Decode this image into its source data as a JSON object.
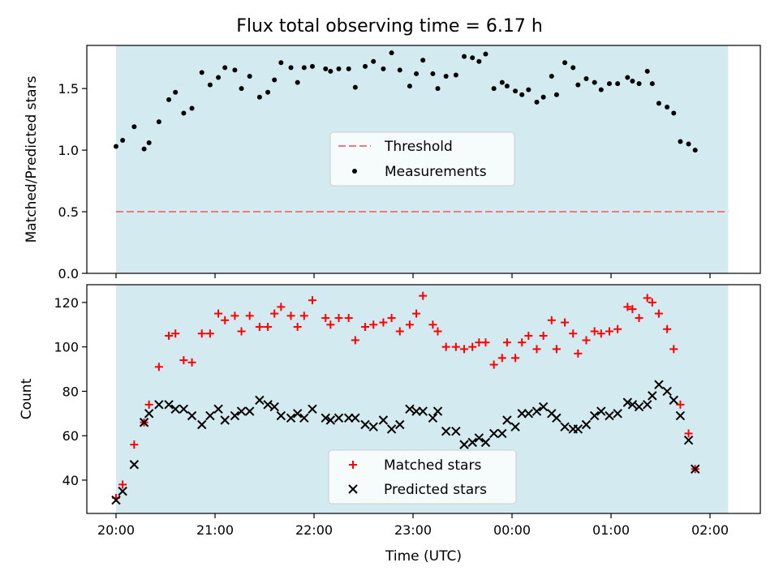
{
  "figure": {
    "title": "Flux total observing time = 6.17 h"
  },
  "chart_data": [
    {
      "type": "scatter",
      "ylabel": "Matched/Predicted stars",
      "xlabel": "",
      "ylim": [
        0,
        1.85
      ],
      "yticks": [
        0.0,
        0.5,
        1.0,
        1.5
      ],
      "ytick_labels": [
        "0.0",
        "0.5",
        "1.0",
        "1.5"
      ],
      "shaded_span": [
        "20:00",
        "02:11"
      ],
      "shade_color": "#d3eaf0",
      "threshold": {
        "name": "Threshold",
        "value": 0.5,
        "color": "#f07a7a"
      },
      "series": [
        {
          "name": "Measurements",
          "color": "#000000",
          "points": [
            [
              "20:00",
              1.03
            ],
            [
              "20:04",
              1.08
            ],
            [
              "20:11",
              1.19
            ],
            [
              "20:17",
              1.01
            ],
            [
              "20:20",
              1.06
            ],
            [
              "20:26",
              1.23
            ],
            [
              "20:32",
              1.41
            ],
            [
              "20:36",
              1.47
            ],
            [
              "20:41",
              1.3
            ],
            [
              "20:46",
              1.34
            ],
            [
              "20:52",
              1.63
            ],
            [
              "20:57",
              1.53
            ],
            [
              "21:02",
              1.59
            ],
            [
              "21:06",
              1.67
            ],
            [
              "21:12",
              1.65
            ],
            [
              "21:16",
              1.5
            ],
            [
              "21:21",
              1.6
            ],
            [
              "21:27",
              1.43
            ],
            [
              "21:32",
              1.47
            ],
            [
              "21:36",
              1.57
            ],
            [
              "21:40",
              1.71
            ],
            [
              "21:46",
              1.67
            ],
            [
              "21:50",
              1.55
            ],
            [
              "21:54",
              1.67
            ],
            [
              "21:59",
              1.68
            ],
            [
              "22:07",
              1.66
            ],
            [
              "22:10",
              1.64
            ],
            [
              "22:15",
              1.66
            ],
            [
              "22:21",
              1.66
            ],
            [
              "22:25",
              1.51
            ],
            [
              "22:31",
              1.68
            ],
            [
              "22:36",
              1.72
            ],
            [
              "22:42",
              1.66
            ],
            [
              "22:47",
              1.79
            ],
            [
              "22:52",
              1.65
            ],
            [
              "22:58",
              1.52
            ],
            [
              "23:02",
              1.62
            ],
            [
              "23:06",
              1.73
            ],
            [
              "23:12",
              1.62
            ],
            [
              "23:15",
              1.5
            ],
            [
              "23:20",
              1.6
            ],
            [
              "23:26",
              1.61
            ],
            [
              "23:31",
              1.76
            ],
            [
              "23:36",
              1.75
            ],
            [
              "23:40",
              1.72
            ],
            [
              "23:44",
              1.78
            ],
            [
              "23:49",
              1.5
            ],
            [
              "23:54",
              1.55
            ],
            [
              "23:57",
              1.52
            ],
            [
              "00:02",
              1.48
            ],
            [
              "00:06",
              1.45
            ],
            [
              "00:10",
              1.49
            ],
            [
              "00:15",
              1.39
            ],
            [
              "00:19",
              1.43
            ],
            [
              "00:24",
              1.6
            ],
            [
              "00:27",
              1.45
            ],
            [
              "00:32",
              1.71
            ],
            [
              "00:37",
              1.67
            ],
            [
              "00:40",
              1.53
            ],
            [
              "00:45",
              1.58
            ],
            [
              "00:50",
              1.55
            ],
            [
              "00:54",
              1.49
            ],
            [
              "00:59",
              1.54
            ],
            [
              "01:04",
              1.54
            ],
            [
              "01:10",
              1.59
            ],
            [
              "01:13",
              1.56
            ],
            [
              "01:17",
              1.54
            ],
            [
              "01:22",
              1.64
            ],
            [
              "01:25",
              1.54
            ],
            [
              "01:29",
              1.38
            ],
            [
              "01:34",
              1.35
            ],
            [
              "01:38",
              1.3
            ],
            [
              "01:42",
              1.07
            ],
            [
              "01:47",
              1.05
            ],
            [
              "01:51",
              1.0
            ]
          ]
        }
      ],
      "legend": {
        "placement": "center",
        "entries": [
          "Threshold",
          "Measurements"
        ]
      }
    },
    {
      "type": "scatter",
      "ylabel": "Count",
      "xlabel": "Time (UTC)",
      "ylim": [
        25,
        128
      ],
      "yticks": [
        40,
        60,
        80,
        100,
        120
      ],
      "ytick_labels": [
        "40",
        "60",
        "80",
        "100",
        "120"
      ],
      "xticks": [
        "20:00",
        "21:00",
        "22:00",
        "23:00",
        "00:00",
        "01:00",
        "02:00"
      ],
      "shaded_span": [
        "20:00",
        "02:11"
      ],
      "shade_color": "#d3eaf0",
      "series": [
        {
          "name": "Matched stars",
          "color": "#ff0000",
          "marker": "plus",
          "points": [
            [
              "20:00",
              32
            ],
            [
              "20:04",
              38
            ],
            [
              "20:11",
              56
            ],
            [
              "20:17",
              66
            ],
            [
              "20:20",
              74
            ],
            [
              "20:26",
              91
            ],
            [
              "20:32",
              105
            ],
            [
              "20:36",
              106
            ],
            [
              "20:41",
              94
            ],
            [
              "20:46",
              93
            ],
            [
              "20:52",
              106
            ],
            [
              "20:57",
              106
            ],
            [
              "21:02",
              115
            ],
            [
              "21:06",
              112
            ],
            [
              "21:12",
              114
            ],
            [
              "21:16",
              107
            ],
            [
              "21:21",
              114
            ],
            [
              "21:27",
              109
            ],
            [
              "21:32",
              109
            ],
            [
              "21:36",
              115
            ],
            [
              "21:40",
              118
            ],
            [
              "21:46",
              114
            ],
            [
              "21:50",
              109
            ],
            [
              "21:54",
              114
            ],
            [
              "21:59",
              121
            ],
            [
              "22:07",
              113
            ],
            [
              "22:10",
              110
            ],
            [
              "22:15",
              113
            ],
            [
              "22:21",
              113
            ],
            [
              "22:25",
              103
            ],
            [
              "22:31",
              109
            ],
            [
              "22:36",
              110
            ],
            [
              "22:42",
              111
            ],
            [
              "22:47",
              113
            ],
            [
              "22:52",
              107
            ],
            [
              "22:58",
              110
            ],
            [
              "23:02",
              115
            ],
            [
              "23:06",
              123
            ],
            [
              "23:12",
              110
            ],
            [
              "23:15",
              107
            ],
            [
              "23:20",
              100
            ],
            [
              "23:26",
              100
            ],
            [
              "23:31",
              99
            ],
            [
              "23:36",
              100
            ],
            [
              "23:40",
              102
            ],
            [
              "23:44",
              102
            ],
            [
              "23:49",
              92
            ],
            [
              "23:54",
              95
            ],
            [
              "23:57",
              102
            ],
            [
              "00:02",
              95
            ],
            [
              "00:06",
              102
            ],
            [
              "00:10",
              105
            ],
            [
              "00:15",
              99
            ],
            [
              "00:19",
              105
            ],
            [
              "00:24",
              112
            ],
            [
              "00:27",
              99
            ],
            [
              "00:32",
              111
            ],
            [
              "00:37",
              106
            ],
            [
              "00:40",
              97
            ],
            [
              "00:45",
              103
            ],
            [
              "00:50",
              107
            ],
            [
              "00:54",
              106
            ],
            [
              "00:59",
              107
            ],
            [
              "01:04",
              108
            ],
            [
              "01:10",
              118
            ],
            [
              "01:13",
              117
            ],
            [
              "01:17",
              113
            ],
            [
              "01:22",
              122
            ],
            [
              "01:25",
              120
            ],
            [
              "01:29",
              115
            ],
            [
              "01:34",
              108
            ],
            [
              "01:38",
              99
            ],
            [
              "01:42",
              74
            ],
            [
              "01:47",
              61
            ],
            [
              "01:51",
              45
            ]
          ]
        },
        {
          "name": "Predicted stars",
          "color": "#000000",
          "marker": "x",
          "points": [
            [
              "20:00",
              31
            ],
            [
              "20:04",
              35
            ],
            [
              "20:11",
              47
            ],
            [
              "20:17",
              66
            ],
            [
              "20:20",
              70
            ],
            [
              "20:26",
              74
            ],
            [
              "20:32",
              74
            ],
            [
              "20:36",
              72
            ],
            [
              "20:41",
              72
            ],
            [
              "20:46",
              69
            ],
            [
              "20:52",
              65
            ],
            [
              "20:57",
              69
            ],
            [
              "21:02",
              72
            ],
            [
              "21:06",
              67
            ],
            [
              "21:12",
              69
            ],
            [
              "21:16",
              71
            ],
            [
              "21:21",
              71
            ],
            [
              "21:27",
              76
            ],
            [
              "21:32",
              74
            ],
            [
              "21:36",
              73
            ],
            [
              "21:40",
              69
            ],
            [
              "21:46",
              68
            ],
            [
              "21:50",
              70
            ],
            [
              "21:54",
              68
            ],
            [
              "21:59",
              72
            ],
            [
              "22:07",
              68
            ],
            [
              "22:10",
              67
            ],
            [
              "22:15",
              68
            ],
            [
              "22:21",
              68
            ],
            [
              "22:25",
              68
            ],
            [
              "22:31",
              65
            ],
            [
              "22:36",
              64
            ],
            [
              "22:42",
              67
            ],
            [
              "22:47",
              63
            ],
            [
              "22:52",
              65
            ],
            [
              "22:58",
              72
            ],
            [
              "23:02",
              71
            ],
            [
              "23:06",
              71
            ],
            [
              "23:12",
              68
            ],
            [
              "23:15",
              71
            ],
            [
              "23:20",
              62
            ],
            [
              "23:26",
              62
            ],
            [
              "23:31",
              56
            ],
            [
              "23:36",
              57
            ],
            [
              "23:40",
              59
            ],
            [
              "23:44",
              57
            ],
            [
              "23:49",
              61
            ],
            [
              "23:54",
              61
            ],
            [
              "23:57",
              67
            ],
            [
              "00:02",
              64
            ],
            [
              "00:06",
              70
            ],
            [
              "00:10",
              70
            ],
            [
              "00:15",
              71
            ],
            [
              "00:19",
              73
            ],
            [
              "00:24",
              70
            ],
            [
              "00:27",
              68
            ],
            [
              "00:32",
              64
            ],
            [
              "00:37",
              63
            ],
            [
              "00:40",
              63
            ],
            [
              "00:45",
              65
            ],
            [
              "00:50",
              69
            ],
            [
              "00:54",
              71
            ],
            [
              "00:59",
              69
            ],
            [
              "01:04",
              70
            ],
            [
              "01:10",
              75
            ],
            [
              "01:13",
              74
            ],
            [
              "01:17",
              73
            ],
            [
              "01:22",
              74
            ],
            [
              "01:25",
              78
            ],
            [
              "01:29",
              83
            ],
            [
              "01:34",
              80
            ],
            [
              "01:38",
              76
            ],
            [
              "01:42",
              69
            ],
            [
              "01:47",
              58
            ],
            [
              "01:51",
              45
            ]
          ]
        }
      ],
      "legend": {
        "placement": "bottom-center",
        "entries": [
          "Matched stars",
          "Predicted stars"
        ]
      }
    }
  ]
}
